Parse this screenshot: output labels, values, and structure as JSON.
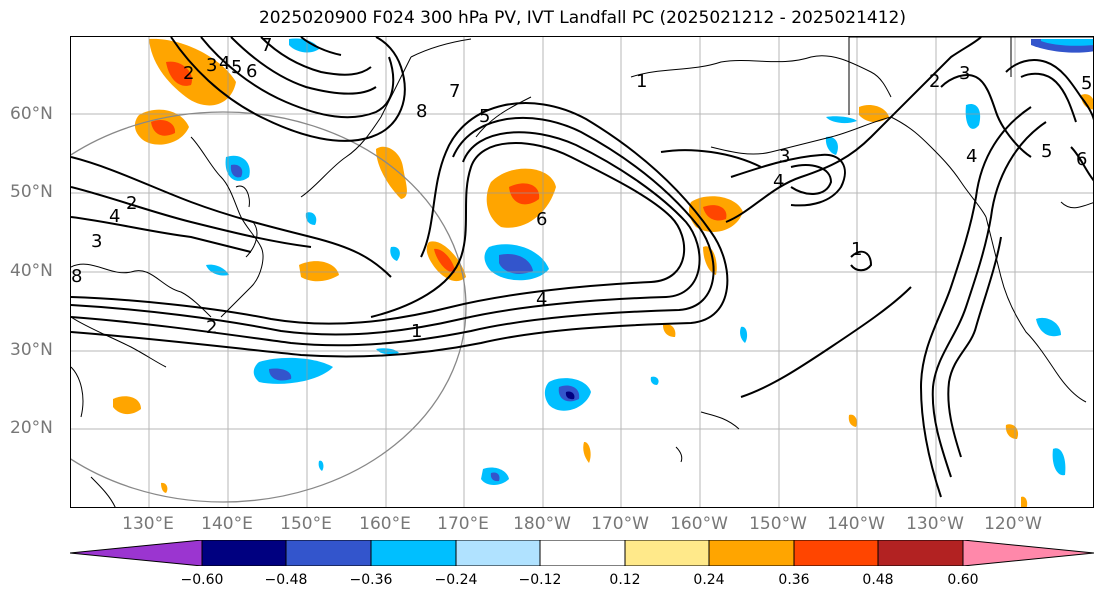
{
  "title": "2025020900 F024 300 hPa PV, IVT Landfall PC (2025021212 - 2025021412)",
  "lat_labels": [
    "60°N",
    "50°N",
    "40°N",
    "30°N",
    "20°N"
  ],
  "lon_labels": [
    "130°E",
    "140°E",
    "150°E",
    "160°E",
    "170°E",
    "180°W",
    "170°W",
    "160°W",
    "150°W",
    "140°W",
    "130°W",
    "120°W"
  ],
  "contour_labels": [
    "2",
    "3",
    "4",
    "5",
    "6",
    "7",
    "1",
    "2",
    "3",
    "4",
    "6",
    "8",
    "7",
    "8",
    "5",
    "3",
    "4",
    "1",
    "4",
    "2",
    "1",
    "2",
    "3",
    "5",
    "4",
    "5",
    "6"
  ],
  "colorbar": {
    "ticks": [
      "−0.60",
      "−0.48",
      "−0.36",
      "−0.24",
      "−0.12",
      "0.12",
      "0.24",
      "0.36",
      "0.48",
      "0.60"
    ],
    "colors": [
      "#9b35d0",
      "#000080",
      "#3355cc",
      "#00bfff",
      "#b0e2ff",
      "#ffffff",
      "#ffe98a",
      "#ffa500",
      "#ff4500",
      "#b22222",
      "#ff88aa"
    ]
  }
}
